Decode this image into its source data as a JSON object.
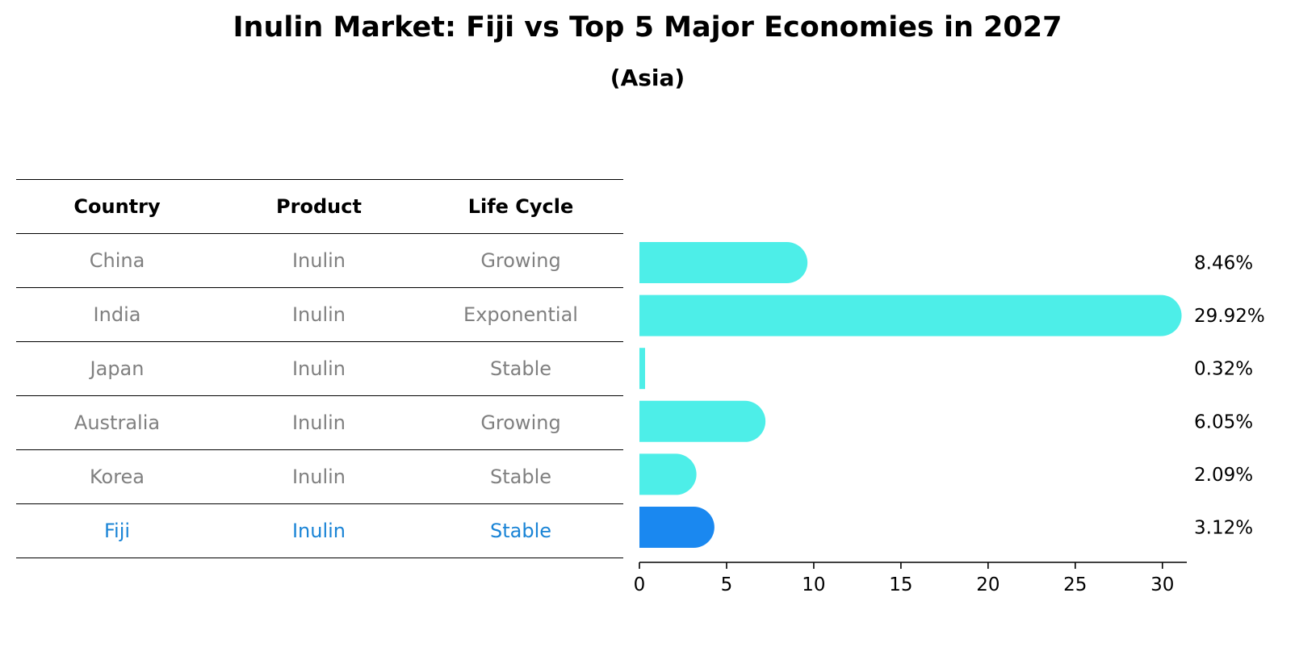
{
  "title": "Inulin Market: Fiji vs Top 5 Major Economies in 2027",
  "subtitle": "(Asia)",
  "table": {
    "headers": [
      "Country",
      "Product",
      "Life Cycle"
    ],
    "rows": [
      [
        "China",
        "Inulin",
        "Growing"
      ],
      [
        "India",
        "Inulin",
        "Exponential"
      ],
      [
        "Japan",
        "Inulin",
        "Stable"
      ],
      [
        "Australia",
        "Inulin",
        "Growing"
      ],
      [
        "Korea",
        "Inulin",
        "Stable"
      ],
      [
        "Fiji",
        "Inulin",
        "Stable"
      ]
    ]
  },
  "colors": {
    "bar": "#4deee8",
    "highlight_bar": "#1a88f0",
    "highlight_text": "#1a84d6",
    "row_text": "#808080"
  },
  "chart_data": {
    "type": "bar",
    "orientation": "horizontal",
    "categories": [
      "China",
      "India",
      "Japan",
      "Australia",
      "Korea",
      "Fiji"
    ],
    "values": [
      8.46,
      29.92,
      0.32,
      6.05,
      2.09,
      3.12
    ],
    "labels": [
      "8.46%",
      "29.92%",
      "0.32%",
      "6.05%",
      "2.09%",
      "3.12%"
    ],
    "highlight": "Fiji",
    "xlim": [
      0,
      31.4
    ],
    "xticks": [
      0,
      5,
      10,
      15,
      20,
      25,
      30
    ],
    "title": "Inulin Market: Fiji vs Top 5 Major Economies in 2027",
    "xlabel": "",
    "ylabel": ""
  }
}
